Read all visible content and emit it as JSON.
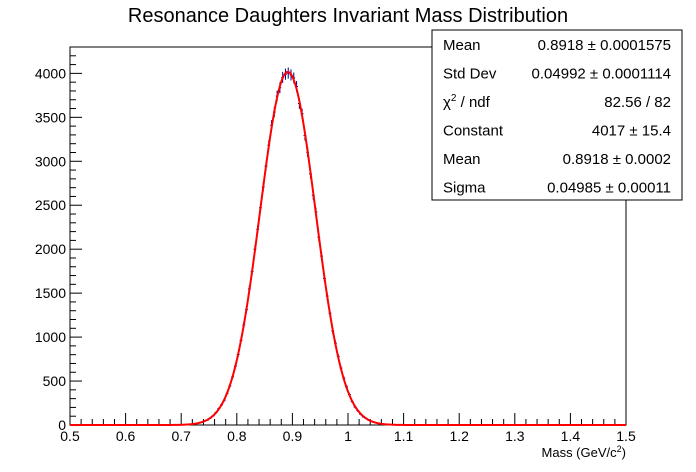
{
  "chart_data": {
    "type": "histogram",
    "title": "Resonance Daughters Invariant Mass Distribution",
    "xlabel": "Mass (GeV/c",
    "xlabel_sup": "2",
    "xlabel_close": ")",
    "ylabel": "",
    "xlim": [
      0.5,
      1.5
    ],
    "ylim": [
      0,
      4300
    ],
    "grid": false,
    "x_ticks": [
      "0.5",
      "0.6",
      "0.7",
      "0.8",
      "0.9",
      "1",
      "1.1",
      "1.2",
      "1.3",
      "1.4",
      "1.5"
    ],
    "y_ticks": [
      "0",
      "500",
      "1000",
      "1500",
      "2000",
      "2500",
      "3000",
      "3500",
      "4000"
    ],
    "histogram": {
      "bin_width": 0.005,
      "peak_center": 0.8918,
      "peak_height": 4017,
      "peak_sigma": 0.04985,
      "color": "#000080"
    },
    "fit": {
      "function": "gaus",
      "constant": 4017,
      "mean": 0.8918,
      "sigma": 0.04985,
      "color": "#ff0000"
    },
    "stats_box": {
      "rows": [
        {
          "key": "mean",
          "label": "Mean",
          "value": "0.8918 ± 0.0001575"
        },
        {
          "key": "stddev",
          "label": "Std Dev",
          "value": "0.04992 ± 0.0001114"
        },
        {
          "key": "chi2",
          "label": "χ",
          "label_sup": "2",
          "label_tail": " / ndf",
          "value": "82.56 / 82"
        },
        {
          "key": "constant",
          "label": "Constant",
          "value": "4017 ± 15.4"
        },
        {
          "key": "fit_mean",
          "label": "Mean",
          "value": "0.8918 ± 0.0002"
        },
        {
          "key": "sigma",
          "label": "Sigma",
          "value": "0.04985 ± 0.00011"
        }
      ]
    }
  }
}
